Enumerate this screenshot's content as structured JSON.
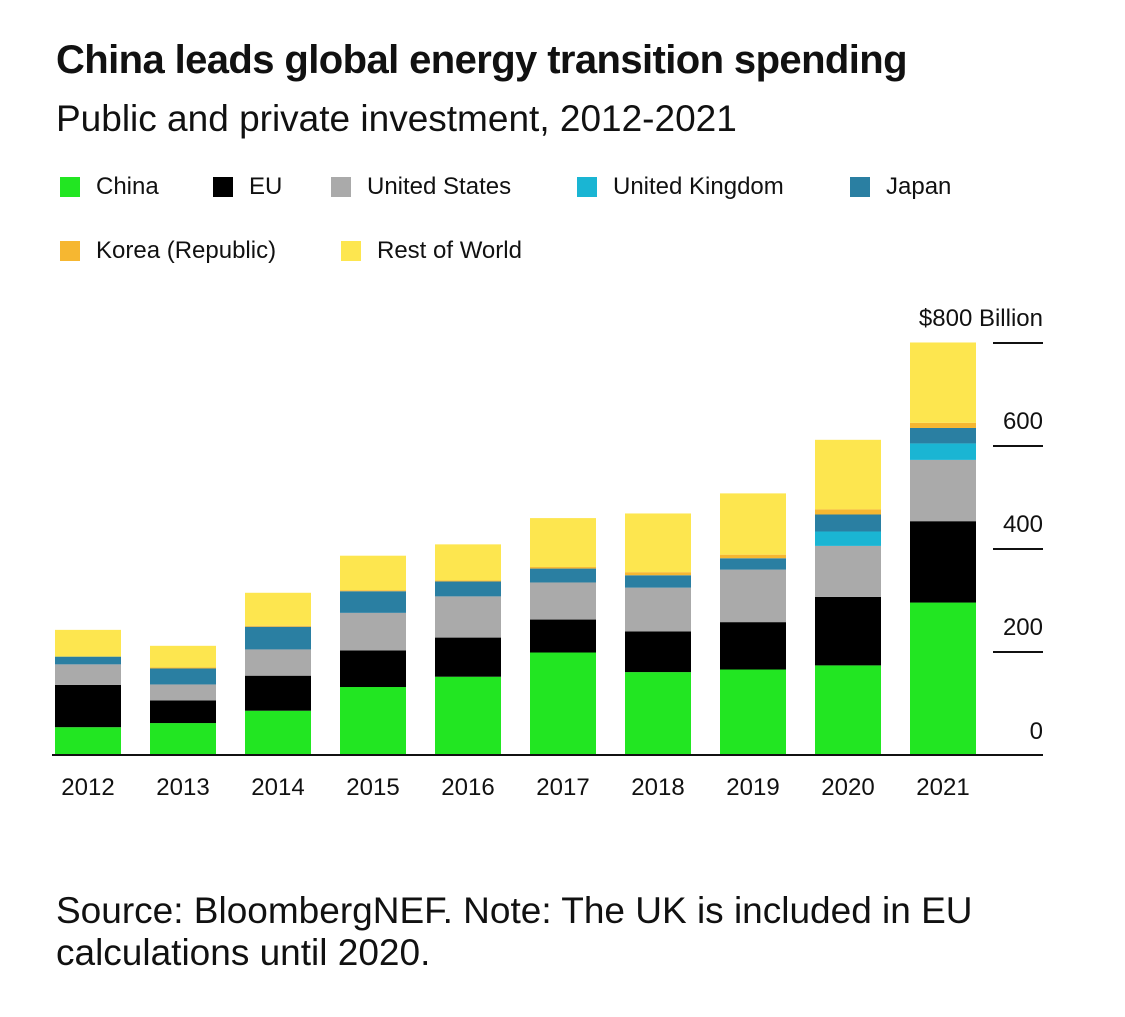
{
  "title": "China leads global energy transition spending",
  "subtitle": "Public and private investment, 2012-2021",
  "source": "Source: BloombergNEF. Note: The UK is included in EU calculations until 2020.",
  "colors": {
    "China": "#22e622",
    "EU": "#000000",
    "United States": "#aaaaaa",
    "United Kingdom": "#1ab5d3",
    "Japan": "#2a7fa2",
    "Korea (Republic)": "#f6b731",
    "Rest of World": "#fde64f"
  },
  "chart_data": {
    "type": "bar",
    "stacked": true,
    "categories": [
      "2012",
      "2013",
      "2014",
      "2015",
      "2016",
      "2017",
      "2018",
      "2019",
      "2020",
      "2021"
    ],
    "series": [
      {
        "name": "China",
        "values": [
          54,
          62,
          86,
          132,
          152,
          199,
          161,
          166,
          174,
          296
        ]
      },
      {
        "name": "EU",
        "values": [
          82,
          44,
          68,
          71,
          76,
          64,
          79,
          92,
          133,
          158
        ]
      },
      {
        "name": "United States",
        "values": [
          40,
          31,
          51,
          73,
          80,
          72,
          85,
          102,
          99,
          119
        ]
      },
      {
        "name": "United Kingdom",
        "values": [
          0,
          0,
          0,
          0,
          0,
          0,
          0,
          0,
          28,
          32
        ]
      },
      {
        "name": "Japan",
        "values": [
          15,
          31,
          44,
          42,
          29,
          27,
          24,
          22,
          33,
          30
        ]
      },
      {
        "name": "Korea (Republic)",
        "values": [
          0,
          2,
          2,
          2,
          2,
          3,
          6,
          7,
          10,
          10
        ]
      },
      {
        "name": "Rest of World",
        "values": [
          52,
          42,
          64,
          67,
          70,
          95,
          114,
          119,
          135,
          156
        ]
      }
    ],
    "y_ticks": [
      {
        "value": 0,
        "label": "0"
      },
      {
        "value": 200,
        "label": "200"
      },
      {
        "value": 400,
        "label": "400"
      },
      {
        "value": 600,
        "label": "600"
      },
      {
        "value": 800,
        "label": "$800 Billion"
      }
    ],
    "ylim": [
      0,
      800
    ],
    "y_axis_position": "right",
    "legend_position": "top-left",
    "grid": false
  }
}
